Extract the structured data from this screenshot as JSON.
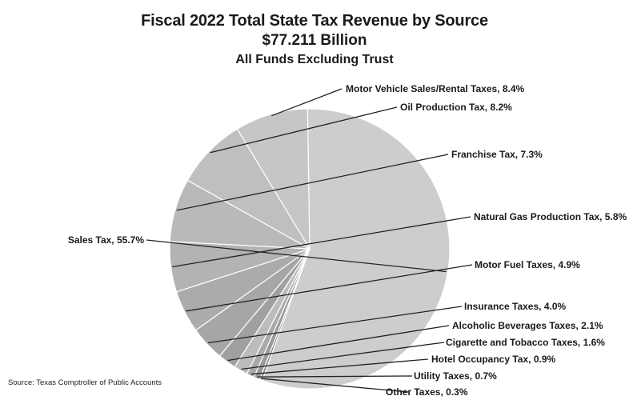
{
  "chart_data": {
    "type": "pie",
    "title": "Fiscal 2022 Total State Tax Revenue by Source",
    "subtitle": "$77.211 Billion",
    "subtitle2": "All Funds Excluding Trust",
    "slices": [
      {
        "label": "Sales Tax, 55.7%",
        "value": 55.7,
        "color": "#cdcdcd"
      },
      {
        "label": "Other Taxes, 0.3%",
        "value": 0.3,
        "color": "#8a8a8a"
      },
      {
        "label": "Utility Taxes, 0.7%",
        "value": 0.7,
        "color": "#9a9a9a"
      },
      {
        "label": "Hotel Occupancy Tax, 0.9%",
        "value": 0.9,
        "color": "#a9a9a9"
      },
      {
        "label": "Cigarette and Tobacco Taxes, 1.6%",
        "value": 1.6,
        "color": "#bcbcbc"
      },
      {
        "label": "Alcoholic Beverages Taxes, 2.1%",
        "value": 2.1,
        "color": "#a0a0a0"
      },
      {
        "label": "Insurance Taxes, 4.0%",
        "value": 4.0,
        "color": "#a6a6a6"
      },
      {
        "label": "Motor Fuel Taxes, 4.9%",
        "value": 4.9,
        "color": "#ababab"
      },
      {
        "label": "Natural Gas Production Tax, 5.8%",
        "value": 5.8,
        "color": "#b3b3b3"
      },
      {
        "label": "Franchise Tax, 7.3%",
        "value": 7.3,
        "color": "#b9b9b9"
      },
      {
        "label": "Oil Production Tax, 8.2%",
        "value": 8.2,
        "color": "#bfbfbf"
      },
      {
        "label": "Motor Vehicle Sales/Rental Taxes, 8.4%",
        "value": 8.4,
        "color": "#c6c6c6"
      }
    ]
  },
  "source": "Source: Texas Comptroller of Public Accounts"
}
